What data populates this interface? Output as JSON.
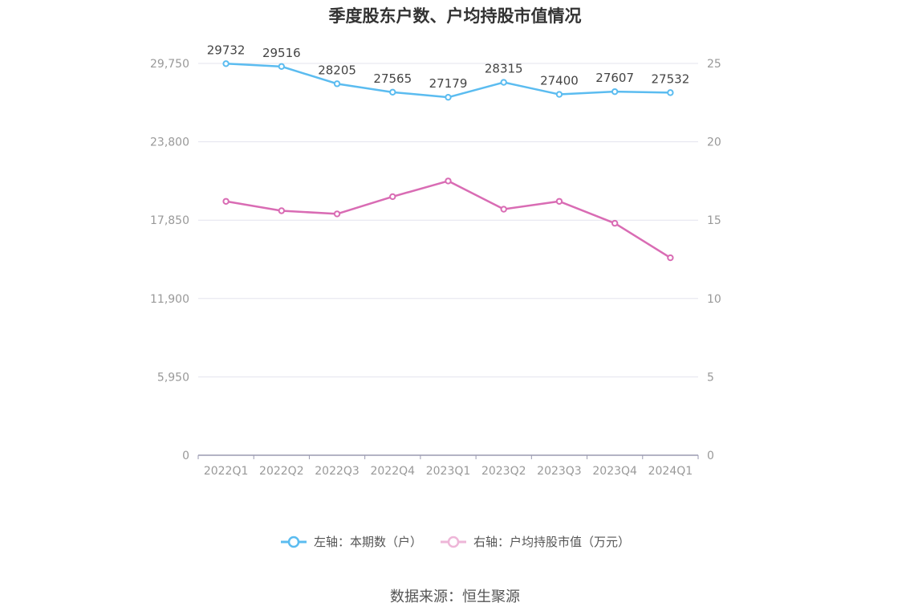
{
  "chart_data": {
    "type": "line",
    "title": "季度股东户数、户均持股市值情况",
    "categories": [
      "2022Q1",
      "2022Q2",
      "2022Q3",
      "2022Q4",
      "2023Q1",
      "2023Q2",
      "2023Q3",
      "2023Q4",
      "2024Q1"
    ],
    "y_left": {
      "ticks": [
        "0",
        "5,950",
        "11,900",
        "17,850",
        "23,800",
        "29,750"
      ],
      "ylim": [
        0,
        29750
      ]
    },
    "y_right": {
      "ticks": [
        "0",
        "5",
        "10",
        "15",
        "20",
        "25"
      ],
      "ylim": [
        0,
        25
      ]
    },
    "grid": true,
    "legend_position": "bottom",
    "series": [
      {
        "name": "左轴：本期数（户）",
        "axis": "left",
        "color": "#5bbcf0",
        "values": [
          29732,
          29516,
          28205,
          27565,
          27179,
          28315,
          27400,
          27607,
          27532
        ],
        "labels": [
          "29732",
          "29516",
          "28205",
          "27565",
          "27179",
          "28315",
          "27400",
          "27607",
          "27532"
        ]
      },
      {
        "name": "右轴：户均持股市值（万元）",
        "axis": "right",
        "color": "#d96cb4",
        "values": [
          16.2,
          15.6,
          15.4,
          16.5,
          17.5,
          15.7,
          16.2,
          14.8,
          12.6
        ]
      }
    ]
  },
  "legend": {
    "left_label": "左轴：本期数（户）",
    "right_label": "右轴：户均持股市值（万元）"
  },
  "source": "数据来源：恒生聚源"
}
